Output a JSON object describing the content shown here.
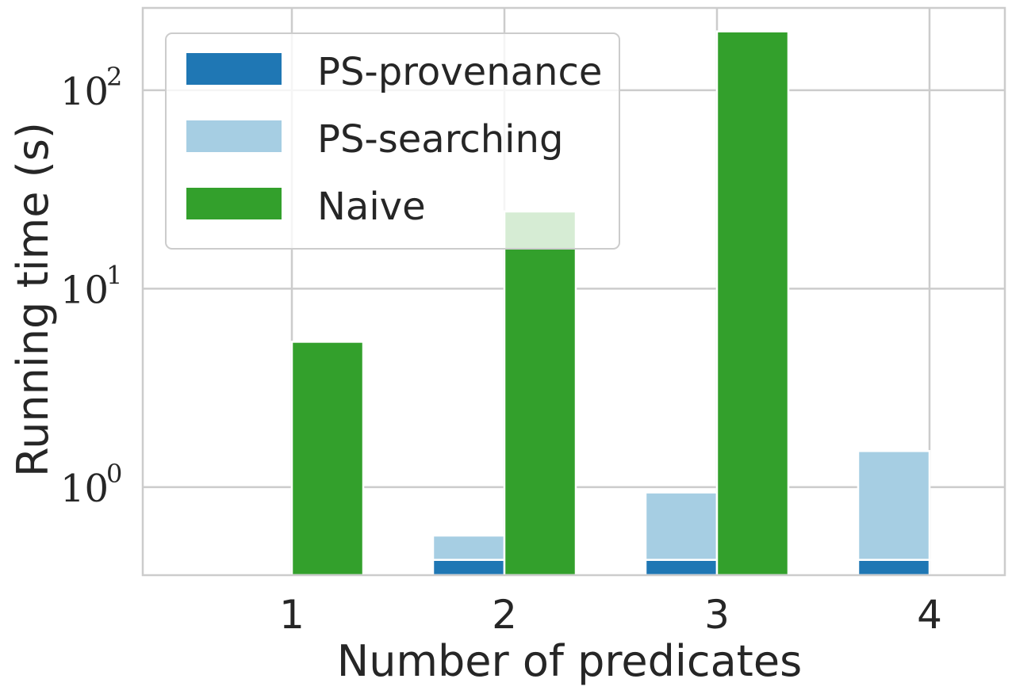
{
  "chart_data": {
    "type": "bar",
    "xlabel": "Number of predicates",
    "ylabel": "Running time (s)",
    "categories": [
      "1",
      "2",
      "3",
      "4"
    ],
    "yscale": "log",
    "ylim": [
      0.36,
      260
    ],
    "yticks": [
      {
        "base": "10",
        "exp": "0"
      },
      {
        "base": "10",
        "exp": "1"
      },
      {
        "base": "10",
        "exp": "2"
      }
    ],
    "grid": true,
    "legend_position": "top-left",
    "stacked_group": {
      "series": [
        {
          "name": "PS-provenance",
          "color": "#1f77b4",
          "values": [
            null,
            0.43,
            0.43,
            0.43
          ]
        },
        {
          "name": "PS-searching",
          "color": "#a6cee3",
          "values": [
            null,
            0.14,
            0.51,
            1.09
          ]
        }
      ]
    },
    "single_group": {
      "series": [
        {
          "name": "Naive",
          "color": "#33a02c",
          "values": [
            5.4,
            24.5,
            198,
            null
          ]
        }
      ]
    }
  },
  "legend": {
    "items": [
      {
        "label": "PS-provenance",
        "color": "#1f77b4"
      },
      {
        "label": "PS-searching",
        "color": "#a6cee3"
      },
      {
        "label": "Naive",
        "color": "#33a02c"
      }
    ]
  }
}
